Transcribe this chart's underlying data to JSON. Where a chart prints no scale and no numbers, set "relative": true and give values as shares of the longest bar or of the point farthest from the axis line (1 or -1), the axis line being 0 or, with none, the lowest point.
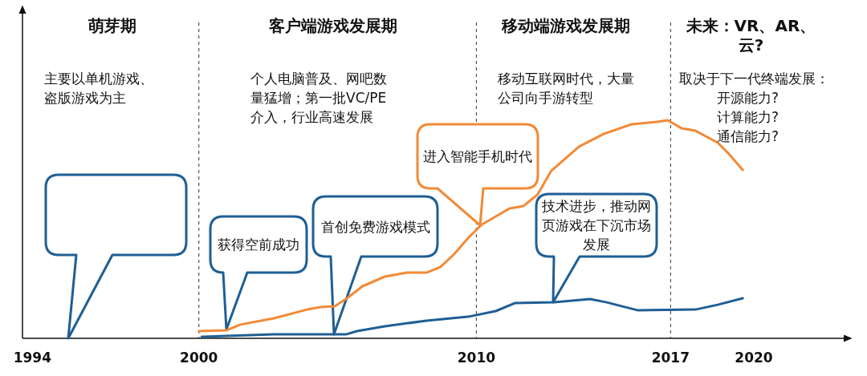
{
  "chart_data": {
    "type": "line",
    "relative": true,
    "xlim": [
      1993.7,
      2023.5
    ],
    "xticks": [
      1994,
      2000,
      2010,
      2017,
      2020
    ],
    "tick_labels": "x",
    "ref_lines": [
      {
        "axis": "x",
        "value": 2000,
        "line_style": "dashed"
      },
      {
        "axis": "x",
        "value": 2010,
        "line_style": "dashed"
      },
      {
        "axis": "x",
        "value": 2017,
        "line_style": "dashed"
      }
    ],
    "series": [
      {
        "color": "#f28a36",
        "x": [
          2000.0,
          2001.0,
          2001.5,
          2002.7,
          2003.9,
          2004.4,
          2004.9,
          2005.3,
          2005.9,
          2006.7,
          2007.5,
          2008.2,
          2008.7,
          2009.2,
          2009.7,
          2010.2,
          2010.7,
          2011.2,
          2011.7,
          2012.2,
          2012.7,
          2013.7,
          2014.6,
          2015.6,
          2016.5,
          2016.9,
          2017.4,
          2017.9,
          2018.7,
          2019.1,
          2019.6
        ],
        "values": [
          0.033,
          0.037,
          0.063,
          0.092,
          0.132,
          0.143,
          0.147,
          0.18,
          0.239,
          0.283,
          0.301,
          0.301,
          0.327,
          0.386,
          0.46,
          0.522,
          0.559,
          0.596,
          0.607,
          0.658,
          0.768,
          0.879,
          0.938,
          0.982,
          0.993,
          1.0,
          0.963,
          0.952,
          0.897,
          0.846,
          0.772
        ]
      },
      {
        "color": "#1f5f94",
        "x": [
          2000.1,
          2001.0,
          2002.7,
          2005.3,
          2005.7,
          2006.7,
          2008.2,
          2009.7,
          2010.7,
          2011.4,
          2012.8,
          2014.1,
          2014.7,
          2015.8,
          2017.9,
          2018.7,
          2019.6
        ],
        "values": [
          0.007,
          0.011,
          0.018,
          0.018,
          0.033,
          0.055,
          0.081,
          0.099,
          0.125,
          0.162,
          0.165,
          0.18,
          0.165,
          0.129,
          0.132,
          0.154,
          0.184
        ]
      }
    ],
    "annotations": [
      "萌芽期",
      "主要以单机游戏、盗版游戏为主",
      "客户端游戏发展期",
      "个人电脑普及、网吧数量猛增；第一批VC/PE介入，行业高速发展",
      "移动端游戏发展期",
      "移动互联网时代，大量公司向手游转型",
      "未来：VR、AR、云?",
      "取决于下一代终端发展：",
      "开源能力?",
      "计算能力?",
      "通信能力?",
      "获得空前成功",
      "首创免费游戏模式",
      "进入智能手机时代",
      "技术进步，推动网页游戏在下沉市场发展"
    ]
  }
}
